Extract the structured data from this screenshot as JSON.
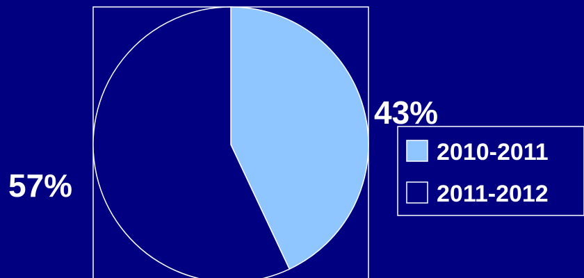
{
  "chart_data": {
    "type": "pie",
    "title": "",
    "slices": [
      {
        "label": "2010-2011",
        "value": 43,
        "display": "43%",
        "color": "#8fc6ff"
      },
      {
        "label": "2011-2012",
        "value": 57,
        "display": "57%",
        "color": "#000080"
      }
    ],
    "legend": {
      "placement": "right",
      "items": [
        {
          "label": "2010-2011",
          "color": "#8fc6ff"
        },
        {
          "label": "2011-2012",
          "color": "#000080"
        }
      ]
    },
    "colors": {
      "background": "#000080",
      "outline": "#ffffff",
      "text": "#ffffff"
    }
  }
}
